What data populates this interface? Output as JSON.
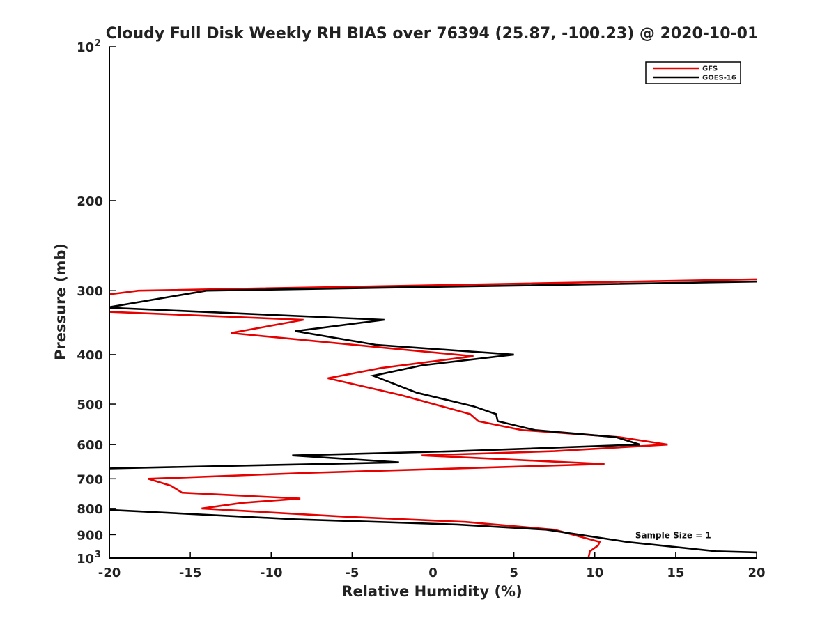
{
  "chart_data": {
    "type": "line",
    "title": "Cloudy Full Disk Weekly RH BIAS over 76394 (25.87, -100.23) @ 2020-10-01",
    "xlabel": "Relative Humidity (%)",
    "ylabel": "Pressure (mb)",
    "xlim": [
      -20,
      20
    ],
    "ylim": [
      100,
      1000
    ],
    "yscale": "log",
    "y_reversed": true,
    "grid": false,
    "legend_position": "top-right",
    "x_ticks": [
      "-20",
      "-15",
      "-10",
      "-5",
      "0",
      "5",
      "10",
      "15",
      "20"
    ],
    "y_ticks": [
      {
        "value": 100,
        "base": "10",
        "exp": "2"
      },
      {
        "value": 200,
        "label": "200"
      },
      {
        "value": 300,
        "label": "300"
      },
      {
        "value": 400,
        "label": "400"
      },
      {
        "value": 500,
        "label": "500"
      },
      {
        "value": 600,
        "label": "600"
      },
      {
        "value": 700,
        "label": "700"
      },
      {
        "value": 800,
        "label": "800"
      },
      {
        "value": 900,
        "label": "900"
      },
      {
        "value": 1000,
        "base": "10",
        "exp": "3"
      }
    ],
    "series": [
      {
        "name": "GFS",
        "color": "#e60000",
        "points": [
          {
            "x": 20,
            "p": 285
          },
          {
            "x": -18.2,
            "p": 300
          },
          {
            "x": -20,
            "p": 305
          },
          {
            "x": null,
            "p": null
          },
          {
            "x": -20,
            "p": 330
          },
          {
            "x": -8,
            "p": 342
          },
          {
            "x": -12.5,
            "p": 363
          },
          {
            "x": -3,
            "p": 388
          },
          {
            "x": 2.5,
            "p": 403
          },
          {
            "x": -3.2,
            "p": 425
          },
          {
            "x": -6.5,
            "p": 445
          },
          {
            "x": -2,
            "p": 480
          },
          {
            "x": 2.3,
            "p": 523
          },
          {
            "x": 2.8,
            "p": 540
          },
          {
            "x": 5.5,
            "p": 562
          },
          {
            "x": 11.5,
            "p": 580
          },
          {
            "x": 14.5,
            "p": 600
          },
          {
            "x": 7.5,
            "p": 618
          },
          {
            "x": -0.7,
            "p": 630
          },
          {
            "x": 10.6,
            "p": 655
          },
          {
            "x": -8,
            "p": 682
          },
          {
            "x": -17.6,
            "p": 700
          },
          {
            "x": -16.2,
            "p": 722
          },
          {
            "x": -15.5,
            "p": 745
          },
          {
            "x": -8.2,
            "p": 765
          },
          {
            "x": -11.8,
            "p": 780
          },
          {
            "x": -14.3,
            "p": 800
          },
          {
            "x": -5.5,
            "p": 830
          },
          {
            "x": 2,
            "p": 850
          },
          {
            "x": 7.5,
            "p": 880
          },
          {
            "x": 10.3,
            "p": 930
          },
          {
            "x": 10.2,
            "p": 945
          },
          {
            "x": 9.7,
            "p": 970
          },
          {
            "x": 9.6,
            "p": 1000
          }
        ]
      },
      {
        "name": "GOES-16",
        "color": "#000000",
        "points": [
          {
            "x": 20,
            "p": 288
          },
          {
            "x": -14,
            "p": 300
          },
          {
            "x": -20,
            "p": 323
          },
          {
            "x": -20,
            "p": 324
          },
          {
            "x": -3,
            "p": 342
          },
          {
            "x": -8.5,
            "p": 360
          },
          {
            "x": -3.5,
            "p": 383
          },
          {
            "x": 5,
            "p": 400
          },
          {
            "x": -0.7,
            "p": 420
          },
          {
            "x": -3.7,
            "p": 440
          },
          {
            "x": -1,
            "p": 475
          },
          {
            "x": 2.5,
            "p": 505
          },
          {
            "x": 3.9,
            "p": 523
          },
          {
            "x": 4,
            "p": 540
          },
          {
            "x": 6.3,
            "p": 562
          },
          {
            "x": 11.3,
            "p": 580
          },
          {
            "x": 12.8,
            "p": 600
          },
          {
            "x": 1.5,
            "p": 618
          },
          {
            "x": -8.7,
            "p": 630
          },
          {
            "x": -2.1,
            "p": 650
          },
          {
            "x": -20,
            "p": 668
          },
          {
            "x": null,
            "p": null
          },
          {
            "x": -20,
            "p": 805
          },
          {
            "x": -8.5,
            "p": 840
          },
          {
            "x": 1.5,
            "p": 860
          },
          {
            "x": 7,
            "p": 880
          },
          {
            "x": 12,
            "p": 930
          },
          {
            "x": 17.5,
            "p": 970
          },
          {
            "x": 20,
            "p": 975
          }
        ]
      }
    ],
    "annotations": [
      {
        "text": "Sample Size = 1",
        "x": 12.5,
        "p": 900
      }
    ]
  }
}
